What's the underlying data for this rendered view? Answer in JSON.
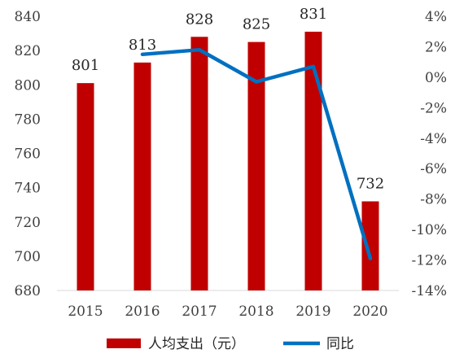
{
  "chart_data": {
    "type": "bar",
    "categories": [
      "2015",
      "2016",
      "2017",
      "2018",
      "2019",
      "2020"
    ],
    "series": [
      {
        "name": "人均支出（元）",
        "type": "bar",
        "axis": "left",
        "color": "#C00000",
        "values": [
          801,
          813,
          828,
          825,
          831,
          732
        ],
        "data_labels": [
          "801",
          "813",
          "828",
          "825",
          "831",
          "732"
        ]
      },
      {
        "name": "同比",
        "type": "line",
        "axis": "right",
        "color": "#0070C0",
        "values": [
          null,
          1.5,
          1.8,
          -0.3,
          0.7,
          -11.9
        ]
      }
    ],
    "y_left": {
      "min": 680,
      "max": 840,
      "ticks": [
        680,
        700,
        720,
        740,
        760,
        780,
        800,
        820,
        840
      ],
      "tick_labels": [
        "680",
        "700",
        "720",
        "740",
        "760",
        "780",
        "800",
        "820",
        "840"
      ]
    },
    "y_right": {
      "min": -14,
      "max": 4,
      "unit": "%",
      "ticks": [
        -14,
        -12,
        -10,
        -8,
        -6,
        -4,
        -2,
        0,
        2,
        4
      ],
      "tick_labels": [
        "-14%",
        "-12%",
        "-10%",
        "-8%",
        "-6%",
        "-4%",
        "-2%",
        "0%",
        "2%",
        "4%"
      ]
    },
    "legend": {
      "placement": "bottom",
      "entries": [
        "人均支出（元）",
        "同比"
      ]
    },
    "grid": false
  }
}
